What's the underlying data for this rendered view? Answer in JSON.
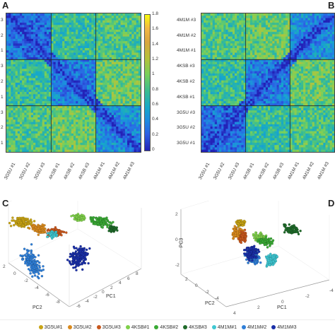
{
  "panels": {
    "a": "A",
    "b": "B",
    "c": "C",
    "d": "D"
  },
  "heatmap_a": {
    "row_labels": [
      "3",
      "2",
      "1",
      "3",
      "2",
      "1",
      "3",
      "2",
      "1"
    ],
    "col_labels": [
      "3G5U #1",
      "3G5U #2",
      "3G5U #3",
      "4KSB #1",
      "4KSB #2",
      "4KSB #3",
      "4M1M #1",
      "4M1M #2",
      "4M1M #3"
    ]
  },
  "heatmap_b": {
    "row_labels": [
      "4M1M #3",
      "4M1M #2",
      "4M1M #1",
      "4KSB #3",
      "4KSB #2",
      "4KSB #1",
      "3G5U #3",
      "3G5U #2",
      "3G5U #1"
    ],
    "col_labels": [
      "3G5U #1",
      "3G5U #2",
      "3G5U #3",
      "4KSB #1",
      "4KSB #2",
      "4KSB #3",
      "4M1M #1",
      "4M1M #2",
      "4M1M #3"
    ]
  },
  "colorbar": {
    "ticks": [
      "1.8",
      "1.6",
      "1.4",
      "1.2",
      "1",
      "0.8",
      "0.6",
      "0.4",
      "0.2",
      "0"
    ]
  },
  "scatter_c": {
    "axis_pc1": "PC1",
    "axis_pc2": "PC2",
    "ticks_pc1": [
      "8",
      "6",
      "4",
      "2",
      "0",
      "-2",
      "-4",
      "-6"
    ],
    "ticks_pc2": [
      "2",
      "0",
      "-2",
      "-4",
      "-6",
      "-8"
    ]
  },
  "scatter_d": {
    "axis_pc1": "PC1",
    "axis_pc2": "PC2",
    "axis_pc3": "PC3",
    "ticks_pc1": [
      "4",
      "2",
      "0",
      "-2",
      "-4"
    ],
    "ticks_pc2": [
      "2",
      "0",
      "-2",
      "-4"
    ],
    "ticks_pc3": [
      "2",
      "0",
      "-2"
    ]
  },
  "legend": [
    {
      "label": "3G5U#1",
      "color": "#c8a415"
    },
    {
      "label": "3G5U#2",
      "color": "#d98a1e"
    },
    {
      "label": "3G5U#3",
      "color": "#c8581e"
    },
    {
      "label": "4KSB#1",
      "color": "#7fd04a"
    },
    {
      "label": "4KSB#2",
      "color": "#3aaa35"
    },
    {
      "label": "4KSB#3",
      "color": "#1f6b2a"
    },
    {
      "label": "4M1M#1",
      "color": "#3fc7d2"
    },
    {
      "label": "4M1M#2",
      "color": "#2f7fd8"
    },
    {
      "label": "4M1M#3",
      "color": "#1a2fa8"
    }
  ]
}
